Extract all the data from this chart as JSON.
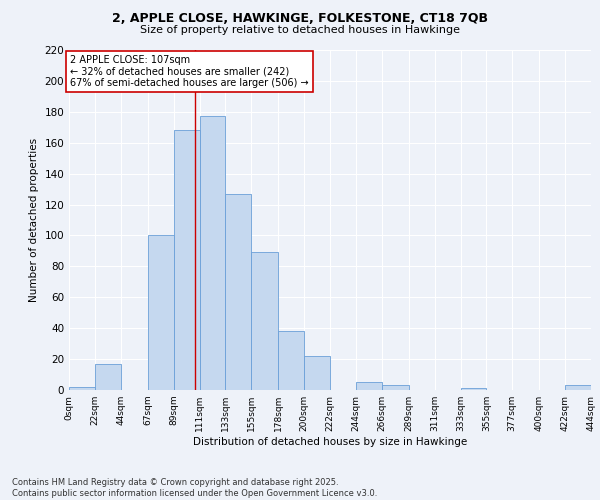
{
  "title1": "2, APPLE CLOSE, HAWKINGE, FOLKESTONE, CT18 7QB",
  "title2": "Size of property relative to detached houses in Hawkinge",
  "xlabel": "Distribution of detached houses by size in Hawkinge",
  "ylabel": "Number of detached properties",
  "bin_edges": [
    0,
    22,
    44,
    67,
    89,
    111,
    133,
    155,
    178,
    200,
    222,
    244,
    266,
    289,
    311,
    333,
    355,
    377,
    400,
    422,
    444
  ],
  "bin_counts": [
    2,
    17,
    0,
    100,
    168,
    177,
    127,
    89,
    38,
    22,
    0,
    5,
    3,
    0,
    0,
    1,
    0,
    0,
    0,
    3
  ],
  "bar_facecolor": "#c5d8ef",
  "bar_edgecolor": "#6a9fd8",
  "property_size": 107,
  "vline_color": "#cc0000",
  "annotation_line1": "2 APPLE CLOSE: 107sqm",
  "annotation_line2": "← 32% of detached houses are smaller (242)",
  "annotation_line3": "67% of semi-detached houses are larger (506) →",
  "annotation_box_edgecolor": "#cc0000",
  "annotation_box_facecolor": "#ffffff",
  "ylim": [
    0,
    220
  ],
  "yticks": [
    0,
    20,
    40,
    60,
    80,
    100,
    120,
    140,
    160,
    180,
    200,
    220
  ],
  "tick_labels": [
    "0sqm",
    "22sqm",
    "44sqm",
    "67sqm",
    "89sqm",
    "111sqm",
    "133sqm",
    "155sqm",
    "178sqm",
    "200sqm",
    "222sqm",
    "244sqm",
    "266sqm",
    "289sqm",
    "311sqm",
    "333sqm",
    "355sqm",
    "377sqm",
    "400sqm",
    "422sqm",
    "444sqm"
  ],
  "footer_text": "Contains HM Land Registry data © Crown copyright and database right 2025.\nContains public sector information licensed under the Open Government Licence v3.0.",
  "bg_color": "#eef2f9",
  "grid_color": "#ffffff"
}
